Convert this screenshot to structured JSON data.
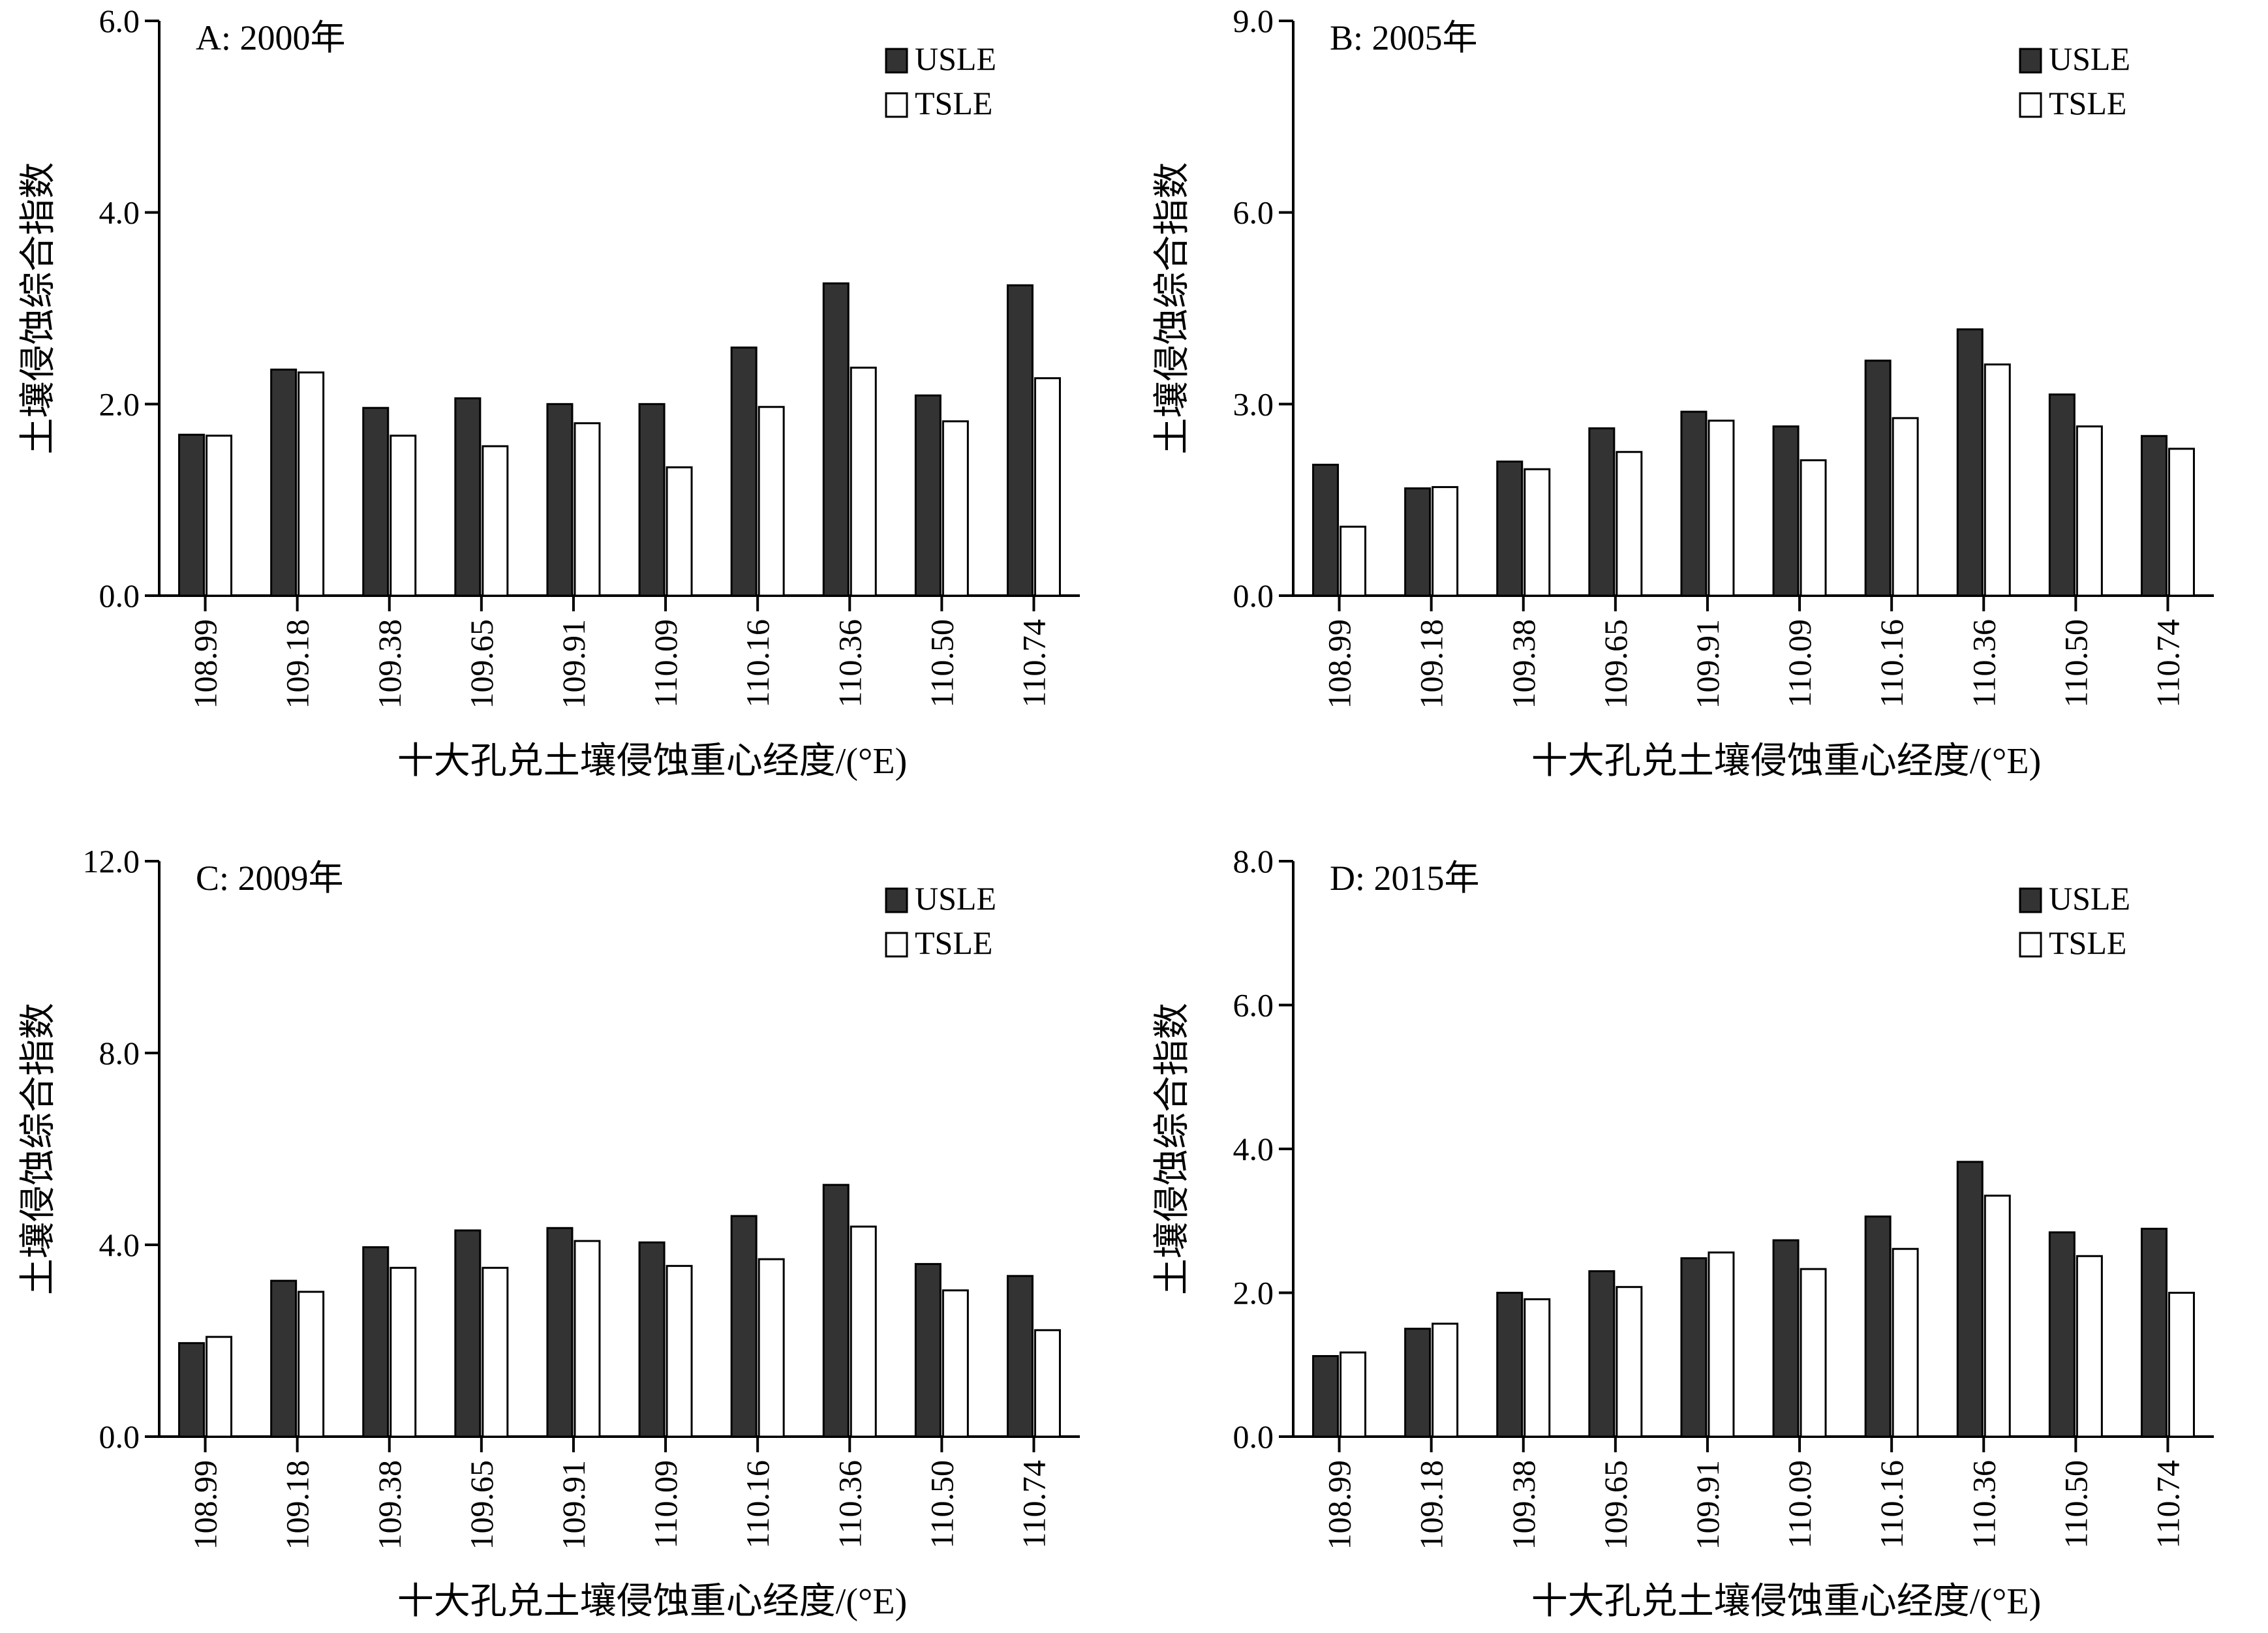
{
  "colors": {
    "USLE": "#333333",
    "TSLE": "#ffffff"
  },
  "chart_data": [
    {
      "type": "bar",
      "title": "A: 2000年",
      "xlabel": "十大孔兑土壤侵蚀重心经度/(°E)",
      "ylabel": "土壤侵蚀综合指数",
      "ylim": [
        0,
        6
      ],
      "yticks": [
        "0.0",
        "2.0",
        "4.0",
        "6.0"
      ],
      "legend": "top-right",
      "categories": [
        "108.99",
        "109.18",
        "109.38",
        "109.65",
        "109.91",
        "110.09",
        "110.16",
        "110.36",
        "110.50",
        "110.74"
      ],
      "series": [
        {
          "name": "USLE",
          "values": [
            1.68,
            2.36,
            1.96,
            2.06,
            2.0,
            2.0,
            2.59,
            3.26,
            2.09,
            3.24
          ]
        },
        {
          "name": "TSLE",
          "values": [
            1.67,
            2.33,
            1.67,
            1.56,
            1.8,
            1.34,
            1.97,
            2.38,
            1.82,
            2.27
          ]
        }
      ]
    },
    {
      "type": "bar",
      "title": "B: 2005年",
      "xlabel": "十大孔兑土壤侵蚀重心经度/(°E)",
      "ylabel": "土壤侵蚀综合指数",
      "ylim": [
        0,
        9
      ],
      "yticks": [
        "0.0",
        "3.0",
        "6.0",
        "9.0"
      ],
      "legend": "top-right",
      "categories": [
        "108.99",
        "109.18",
        "109.38",
        "109.65",
        "109.91",
        "110.09",
        "110.16",
        "110.36",
        "110.50",
        "110.74"
      ],
      "series": [
        {
          "name": "USLE",
          "values": [
            2.05,
            1.68,
            2.1,
            2.62,
            2.88,
            2.65,
            3.68,
            4.17,
            3.15,
            2.5
          ]
        },
        {
          "name": "TSLE",
          "values": [
            1.08,
            1.7,
            1.98,
            2.25,
            2.74,
            2.12,
            2.78,
            3.62,
            2.65,
            2.3
          ]
        }
      ]
    },
    {
      "type": "bar",
      "title": "C: 2009年",
      "xlabel": "十大孔兑土壤侵蚀重心经度/(°E)",
      "ylabel": "土壤侵蚀综合指数",
      "ylim": [
        0,
        12
      ],
      "yticks": [
        "0.0",
        "4.0",
        "8.0",
        "12.0"
      ],
      "legend": "top-right",
      "categories": [
        "108.99",
        "109.18",
        "109.38",
        "109.65",
        "109.91",
        "110.09",
        "110.16",
        "110.36",
        "110.50",
        "110.74"
      ],
      "series": [
        {
          "name": "USLE",
          "values": [
            1.95,
            3.25,
            3.95,
            4.3,
            4.35,
            4.05,
            4.6,
            5.25,
            3.6,
            3.35
          ]
        },
        {
          "name": "TSLE",
          "values": [
            2.08,
            3.02,
            3.52,
            3.52,
            4.08,
            3.56,
            3.7,
            4.38,
            3.05,
            2.22
          ]
        }
      ]
    },
    {
      "type": "bar",
      "title": "D: 2015年",
      "xlabel": "十大孔兑土壤侵蚀重心经度/(°E)",
      "ylabel": "土壤侵蚀综合指数",
      "ylim": [
        0,
        8
      ],
      "yticks": [
        "0.0",
        "2.0",
        "4.0",
        "6.0",
        "8.0"
      ],
      "legend": "top-right",
      "categories": [
        "108.99",
        "109.18",
        "109.38",
        "109.65",
        "109.91",
        "110.09",
        "110.16",
        "110.36",
        "110.50",
        "110.74"
      ],
      "series": [
        {
          "name": "USLE",
          "values": [
            1.12,
            1.5,
            2.0,
            2.3,
            2.48,
            2.73,
            3.06,
            3.82,
            2.84,
            2.89
          ]
        },
        {
          "name": "TSLE",
          "values": [
            1.17,
            1.57,
            1.91,
            2.08,
            2.56,
            2.33,
            2.61,
            3.35,
            2.51,
            2.0
          ]
        }
      ]
    }
  ]
}
